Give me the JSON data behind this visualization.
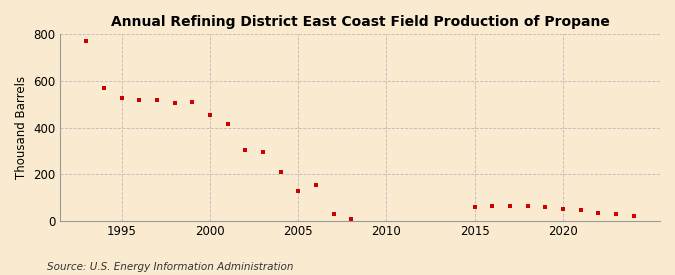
{
  "title": "Annual Refining District East Coast Field Production of Propane",
  "ylabel": "Thousand Barrels",
  "source": "Source: U.S. Energy Information Administration",
  "background_color": "#faebd0",
  "marker_color": "#cc0000",
  "grid_color": "#bbbbbb",
  "ylim": [
    0,
    800
  ],
  "yticks": [
    0,
    200,
    400,
    600,
    800
  ],
  "xlim": [
    1991.5,
    2025.5
  ],
  "xticks": [
    1995,
    2000,
    2005,
    2010,
    2015,
    2020
  ],
  "years": [
    1993,
    1994,
    1995,
    1996,
    1997,
    1998,
    1999,
    2000,
    2001,
    2002,
    2003,
    2004,
    2005,
    2006,
    2007,
    2008,
    2015,
    2016,
    2017,
    2018,
    2019,
    2020,
    2021,
    2022,
    2023,
    2024
  ],
  "values": [
    770,
    570,
    525,
    520,
    520,
    505,
    510,
    455,
    415,
    305,
    295,
    210,
    130,
    155,
    30,
    10,
    60,
    65,
    65,
    65,
    60,
    50,
    45,
    35,
    30,
    20
  ]
}
